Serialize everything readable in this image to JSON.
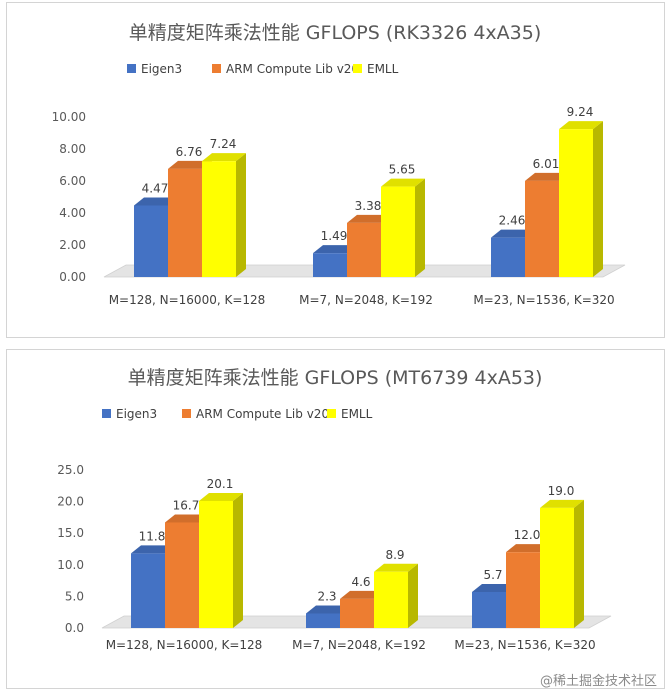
{
  "chart_data": [
    {
      "type": "bar",
      "title": "单精度矩阵乘法性能 GFLOPS    (RK3326 4xA35)",
      "categories": [
        "M=128, N=16000, K=128",
        "M=7, N=2048, K=192",
        "M=23, N=1536, K=320"
      ],
      "series": [
        {
          "name": "Eigen3",
          "values": [
            4.47,
            1.49,
            2.46
          ],
          "labels": [
            "4.47",
            "1.49",
            "2.46"
          ]
        },
        {
          "name": "ARM Compute Lib v20",
          "values": [
            6.76,
            3.38,
            6.01
          ],
          "labels": [
            "6.76",
            "3.38",
            "6.01"
          ]
        },
        {
          "name": "EMLL",
          "values": [
            7.24,
            5.65,
            9.24
          ],
          "labels": [
            "7.24",
            "5.65",
            "9.24"
          ]
        }
      ],
      "yticks": [
        "0.00",
        "2.00",
        "4.00",
        "6.00",
        "8.00",
        "10.00"
      ],
      "ylim": [
        0,
        10
      ],
      "legend": "top",
      "grid": false,
      "style": "3d-column"
    },
    {
      "type": "bar",
      "title": "单精度矩阵乘法性能 GFLOPS   (MT6739 4xA53)",
      "categories": [
        "M=128, N=16000, K=128",
        "M=7, N=2048, K=192",
        "M=23, N=1536, K=320"
      ],
      "series": [
        {
          "name": "Eigen3",
          "values": [
            11.8,
            2.3,
            5.7
          ],
          "labels": [
            "11.8",
            "2.3",
            "5.7"
          ]
        },
        {
          "name": "ARM Compute Lib v20",
          "values": [
            16.7,
            4.6,
            12.0
          ],
          "labels": [
            "16.7",
            "4.6",
            "12.0"
          ]
        },
        {
          "name": "EMLL",
          "values": [
            20.1,
            8.9,
            19.0
          ],
          "labels": [
            "20.1",
            "8.9",
            "19.0"
          ]
        }
      ],
      "yticks": [
        "0.0",
        "5.0",
        "10.0",
        "15.0",
        "20.0",
        "25.0"
      ],
      "ylim": [
        0,
        25
      ],
      "legend": "top",
      "grid": false,
      "style": "3d-column"
    }
  ],
  "colors": {
    "Eigen3": "#4472C4",
    "ARM Compute Lib v20": "#ED7D31",
    "EMLL": "#FFFF00",
    "floor": "#e4e4e4"
  },
  "watermark": "@稀土掘金技术社区"
}
